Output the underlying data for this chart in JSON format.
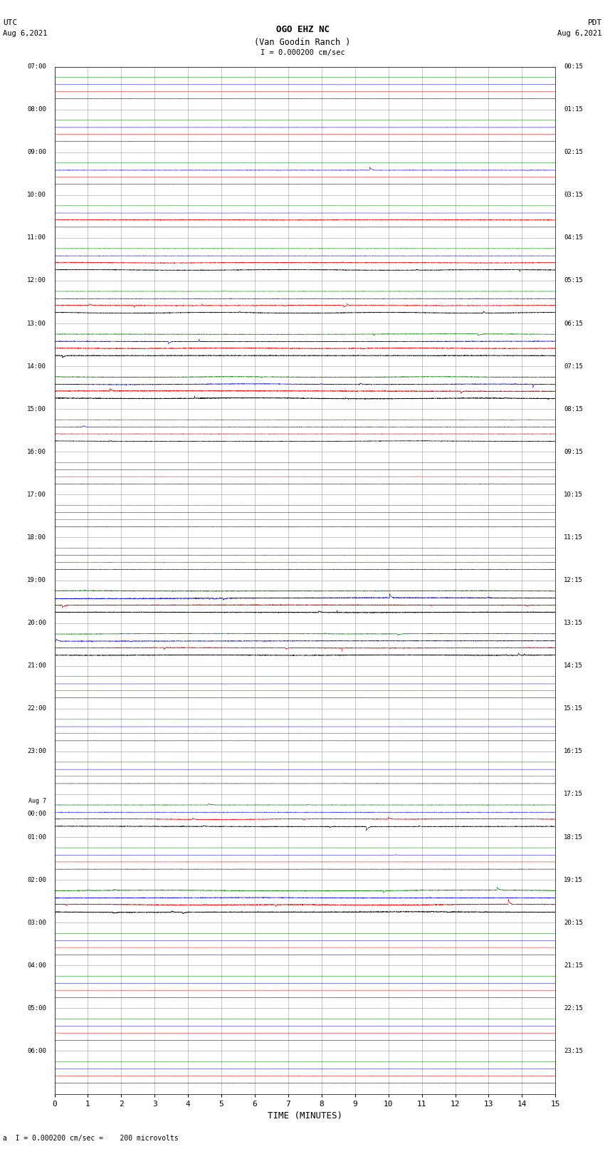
{
  "title_line1": "OGO EHZ NC",
  "title_line2": "(Van Goodin Ranch )",
  "scale_label": "I = 0.000200 cm/sec",
  "left_header1": "UTC",
  "left_header2": "Aug 6,2021",
  "right_header1": "PDT",
  "right_header2": "Aug 6,2021",
  "xlabel": "TIME (MINUTES)",
  "bottom_note": "a  I = 0.000200 cm/sec =    200 microvolts",
  "xlim": [
    0,
    15
  ],
  "xticks": [
    0,
    1,
    2,
    3,
    4,
    5,
    6,
    7,
    8,
    9,
    10,
    11,
    12,
    13,
    14,
    15
  ],
  "fig_width": 8.5,
  "fig_height": 16.13,
  "background_color": "#ffffff",
  "grid_color": "#aaaaaa",
  "trace_colors": [
    "black",
    "red",
    "blue",
    "green"
  ],
  "left_times": [
    "07:00",
    "08:00",
    "09:00",
    "10:00",
    "11:00",
    "12:00",
    "13:00",
    "14:00",
    "15:00",
    "16:00",
    "17:00",
    "18:00",
    "19:00",
    "20:00",
    "21:00",
    "22:00",
    "23:00",
    "Aug 7\n00:00",
    "01:00",
    "02:00",
    "03:00",
    "04:00",
    "05:00",
    "06:00"
  ],
  "right_times": [
    "00:15",
    "01:15",
    "02:15",
    "03:15",
    "04:15",
    "05:15",
    "06:15",
    "07:15",
    "08:15",
    "09:15",
    "10:15",
    "11:15",
    "12:15",
    "13:15",
    "14:15",
    "15:15",
    "16:15",
    "17:15",
    "18:15",
    "19:15",
    "20:15",
    "21:15",
    "22:15",
    "23:15"
  ],
  "n_rows": 24,
  "seed": 42,
  "row_activities": [
    {
      "amps": [
        0.018,
        0.006,
        0.008,
        0.006
      ],
      "base_noise": [
        0.007,
        0.003,
        0.003,
        0.003
      ]
    },
    {
      "amps": [
        0.015,
        0.005,
        0.02,
        0.005
      ],
      "base_noise": [
        0.006,
        0.003,
        0.008,
        0.003
      ]
    },
    {
      "amps": [
        0.015,
        0.005,
        0.04,
        0.005
      ],
      "base_noise": [
        0.006,
        0.003,
        0.015,
        0.003
      ]
    },
    {
      "amps": [
        0.015,
        0.06,
        0.005,
        0.01
      ],
      "base_noise": [
        0.006,
        0.025,
        0.004,
        0.005
      ]
    },
    {
      "amps": [
        0.06,
        0.06,
        0.03,
        0.03
      ],
      "base_noise": [
        0.025,
        0.025,
        0.012,
        0.012
      ]
    },
    {
      "amps": [
        0.06,
        0.06,
        0.04,
        0.03
      ],
      "base_noise": [
        0.025,
        0.025,
        0.015,
        0.012
      ]
    },
    {
      "amps": [
        0.08,
        0.08,
        0.06,
        0.05
      ],
      "base_noise": [
        0.03,
        0.03,
        0.025,
        0.02
      ]
    },
    {
      "amps": [
        0.08,
        0.08,
        0.06,
        0.06
      ],
      "base_noise": [
        0.035,
        0.035,
        0.025,
        0.025
      ]
    },
    {
      "amps": [
        0.05,
        0.04,
        0.03,
        0.03
      ],
      "base_noise": [
        0.02,
        0.015,
        0.012,
        0.012
      ]
    },
    {
      "amps": [
        0.02,
        0.015,
        0.012,
        0.01
      ],
      "base_noise": [
        0.008,
        0.006,
        0.005,
        0.005
      ]
    },
    {
      "amps": [
        0.02,
        0.015,
        0.012,
        0.012
      ],
      "base_noise": [
        0.008,
        0.006,
        0.005,
        0.005
      ]
    },
    {
      "amps": [
        0.03,
        0.025,
        0.02,
        0.015
      ],
      "base_noise": [
        0.012,
        0.01,
        0.008,
        0.007
      ]
    },
    {
      "amps": [
        0.08,
        0.08,
        0.08,
        0.07
      ],
      "base_noise": [
        0.035,
        0.035,
        0.035,
        0.03
      ]
    },
    {
      "amps": [
        0.08,
        0.08,
        0.06,
        0.05
      ],
      "base_noise": [
        0.03,
        0.03,
        0.025,
        0.02
      ]
    },
    {
      "amps": [
        0.01,
        0.008,
        0.008,
        0.006
      ],
      "base_noise": [
        0.004,
        0.003,
        0.003,
        0.003
      ]
    },
    {
      "amps": [
        0.012,
        0.01,
        0.008,
        0.006
      ],
      "base_noise": [
        0.005,
        0.004,
        0.003,
        0.003
      ]
    },
    {
      "amps": [
        0.02,
        0.015,
        0.01,
        0.008
      ],
      "base_noise": [
        0.008,
        0.006,
        0.004,
        0.003
      ]
    },
    {
      "amps": [
        0.06,
        0.06,
        0.04,
        0.04
      ],
      "base_noise": [
        0.025,
        0.025,
        0.015,
        0.015
      ]
    },
    {
      "amps": [
        0.025,
        0.02,
        0.015,
        0.012
      ],
      "base_noise": [
        0.01,
        0.008,
        0.006,
        0.005
      ]
    },
    {
      "amps": [
        0.08,
        0.08,
        0.06,
        0.06
      ],
      "base_noise": [
        0.035,
        0.035,
        0.025,
        0.025
      ]
    },
    {
      "amps": [
        0.01,
        0.008,
        0.006,
        0.005
      ],
      "base_noise": [
        0.004,
        0.003,
        0.003,
        0.002
      ]
    },
    {
      "amps": [
        0.01,
        0.008,
        0.006,
        0.005
      ],
      "base_noise": [
        0.004,
        0.003,
        0.003,
        0.002
      ]
    },
    {
      "amps": [
        0.01,
        0.008,
        0.006,
        0.005
      ],
      "base_noise": [
        0.004,
        0.003,
        0.003,
        0.002
      ]
    },
    {
      "amps": [
        0.015,
        0.02,
        0.01,
        0.008
      ],
      "base_noise": [
        0.006,
        0.008,
        0.004,
        0.003
      ]
    }
  ]
}
